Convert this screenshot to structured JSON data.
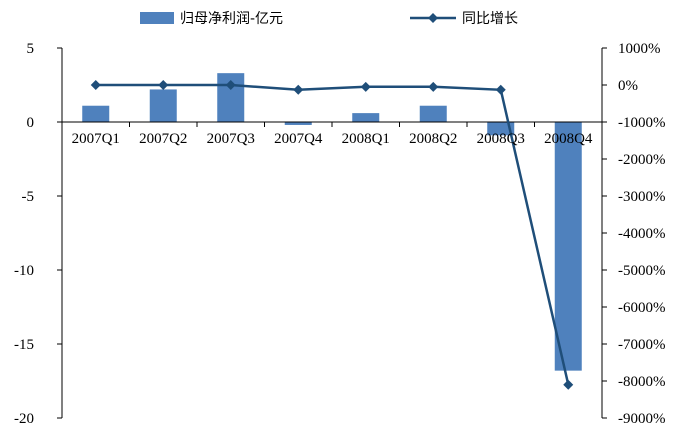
{
  "chart_data": {
    "type": "bar",
    "categories": [
      "2007Q1",
      "2007Q2",
      "2007Q3",
      "2007Q4",
      "2008Q1",
      "2008Q2",
      "2008Q3",
      "2008Q4"
    ],
    "series": [
      {
        "name": "归母净利润-亿元",
        "type": "bar",
        "axis": "left",
        "color": "#4f81bd",
        "values": [
          1.1,
          2.2,
          3.3,
          -0.2,
          0.6,
          1.1,
          -0.9,
          -16.8
        ]
      },
      {
        "name": "同比增长",
        "type": "line",
        "axis": "right",
        "color": "#1f4e79",
        "marker": "diamond",
        "values": [
          0,
          0,
          0,
          -130,
          -50,
          -50,
          -130,
          -8100
        ]
      }
    ],
    "y_left": {
      "range": [
        -20,
        5
      ],
      "ticks": [
        5,
        0,
        -5,
        -10,
        -15,
        -20
      ],
      "tick_labels": [
        "5",
        "0",
        "-5",
        "-10",
        "-15",
        "-20"
      ]
    },
    "y_right": {
      "range": [
        -9000,
        1000
      ],
      "ticks": [
        1000,
        0,
        -1000,
        -2000,
        -3000,
        -4000,
        -5000,
        -6000,
        -7000,
        -8000,
        -9000
      ],
      "tick_labels": [
        "1000%",
        "0%",
        "-1000%",
        "-2000%",
        "-3000%",
        "-4000%",
        "-5000%",
        "-6000%",
        "-7000%",
        "-8000%",
        "-9000%"
      ]
    },
    "legend_position": "top",
    "grid": false
  }
}
